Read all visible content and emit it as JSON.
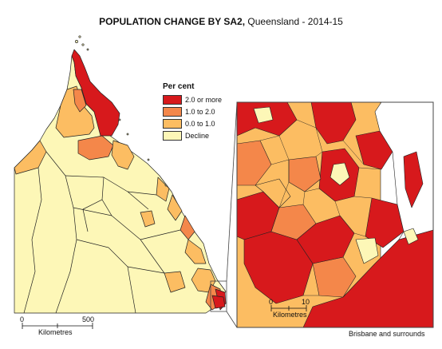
{
  "title": {
    "bold": "POPULATION CHANGE BY SA2,",
    "rest": "Queensland - 2014-15"
  },
  "legend": {
    "heading": "Per cent",
    "items": [
      {
        "label": "2.0 or more",
        "color": "#d7191c"
      },
      {
        "label": "1.0 to 2.0",
        "color": "#f4874a"
      },
      {
        "label": "0.0 to 1.0",
        "color": "#fcbd62"
      },
      {
        "label": "Decline",
        "color": "#fdf7b7"
      }
    ]
  },
  "main_scale": {
    "zero": "0",
    "max": "500",
    "unit": "Kilometres"
  },
  "inset": {
    "caption": "Brisbane and surrounds",
    "scale": {
      "zero": "0",
      "max": "10",
      "unit": "Kilometres"
    }
  },
  "colors": {
    "outline": "#222222",
    "frame": "#444444"
  }
}
